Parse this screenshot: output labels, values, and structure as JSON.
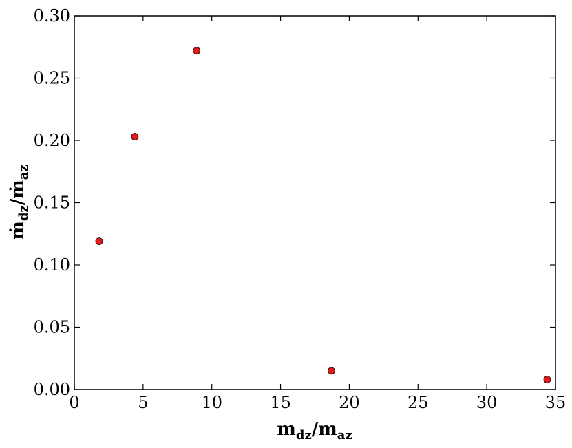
{
  "chart_data": {
    "type": "scatter",
    "title": "",
    "xlabel": {
      "main_1": "m",
      "sub_1": "dz",
      "slash": "/",
      "main_2": "m",
      "sub_2": "az"
    },
    "ylabel": {
      "main_1": "ṁ",
      "sub_1": "dz",
      "slash": "/",
      "main_2": "ṁ",
      "sub_2": "az"
    },
    "xlim": [
      0,
      35
    ],
    "ylim": [
      0.0,
      0.3
    ],
    "xticks": [
      0,
      5,
      10,
      15,
      20,
      25,
      30,
      35
    ],
    "xtick_labels": [
      "0",
      "5",
      "10",
      "15",
      "20",
      "25",
      "30",
      "35"
    ],
    "yticks": [
      0.0,
      0.05,
      0.1,
      0.15,
      0.2,
      0.25,
      0.3
    ],
    "ytick_labels": [
      "0.00",
      "0.05",
      "0.10",
      "0.15",
      "0.20",
      "0.25",
      "0.30"
    ],
    "grid": false,
    "legend": "none",
    "marker_color": "#e31a1c",
    "series": [
      {
        "x": [
          1.8,
          4.4,
          8.9,
          18.7,
          34.4
        ],
        "y": [
          0.119,
          0.203,
          0.272,
          0.015,
          0.008
        ]
      }
    ]
  }
}
